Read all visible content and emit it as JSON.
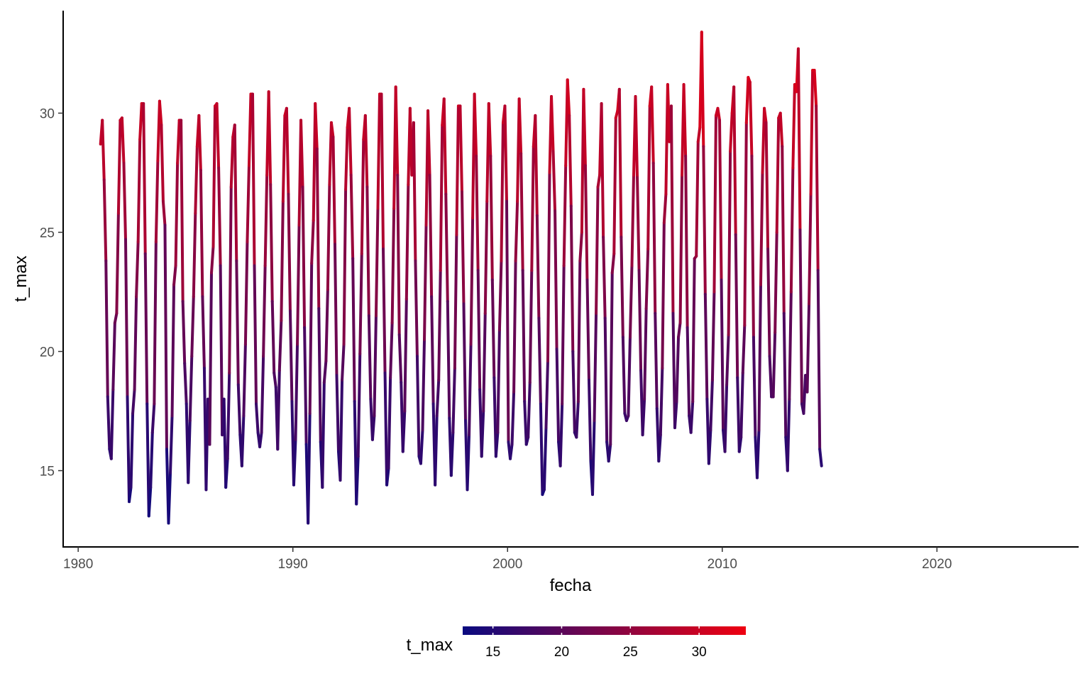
{
  "chart_data": {
    "type": "line",
    "title": "",
    "xlabel": "fecha",
    "ylabel": "t_max",
    "xlim": [
      1979.3,
      2026.6
    ],
    "ylim": [
      11.8,
      34.3
    ],
    "x_ticks": [
      1980,
      1990,
      2000,
      2010,
      2020
    ],
    "x_tick_labels": [
      "1980",
      "1990",
      "2000",
      "2010",
      "2020"
    ],
    "y_ticks": [
      15,
      20,
      25,
      30
    ],
    "y_tick_labels": [
      "15",
      "20",
      "25",
      "30"
    ],
    "grid": false,
    "series": [
      {
        "x_start": "1981-01",
        "frequency": "monthly",
        "color_mapped_to": "t_max",
        "values": [
          28.7,
          29.7,
          27.2,
          23.8,
          18.1,
          15.9,
          15.5,
          18.4,
          21.2,
          21.6,
          25.8,
          29.7,
          29.8,
          27.9,
          24.7,
          18.1,
          13.7,
          14.3,
          17.4,
          18.4,
          22.3,
          24.6,
          28.9,
          30.4,
          30.4,
          24.1,
          17.8,
          13.1,
          14.3,
          16.6,
          17.8,
          24.6,
          28.0,
          30.5,
          29.5,
          26.3,
          25.3,
          15.9,
          12.8,
          14.9,
          17.3,
          22.8,
          23.6,
          27.9,
          29.7,
          29.7,
          22.1,
          19.5,
          17.8,
          14.5,
          17.1,
          19.8,
          22.3,
          25.8,
          28.6,
          29.9,
          27.6,
          22.3,
          19.3,
          14.2,
          18.0,
          16.1,
          23.3,
          24.4,
          30.3,
          30.4,
          27.7,
          23.6,
          16.5,
          18.0,
          14.3,
          15.5,
          19.1,
          26.9,
          29.0,
          29.5,
          23.8,
          18.6,
          16.5,
          15.2,
          17.3,
          20.3,
          24.6,
          27.8,
          30.8,
          30.8,
          23.6,
          17.8,
          16.6,
          16.0,
          16.6,
          19.8,
          23.6,
          27.4,
          30.9,
          27.0,
          22.1,
          19.1,
          18.5,
          15.9,
          19.2,
          21.3,
          26.3,
          29.9,
          30.2,
          26.6,
          21.7,
          17.9,
          14.4,
          16.3,
          20.3,
          25.3,
          29.7,
          26.9,
          21.0,
          16.1,
          12.8,
          17.4,
          23.7,
          25.5,
          30.4,
          28.5,
          21.8,
          16.2,
          14.3,
          18.7,
          19.6,
          22.6,
          27.0,
          29.6,
          29.0,
          24.5,
          19.0,
          15.8,
          14.6,
          18.8,
          20.3,
          26.8,
          29.4,
          30.2,
          27.4,
          23.9,
          17.9,
          13.6,
          15.6,
          19.9,
          24.1,
          28.9,
          29.9,
          26.9,
          21.5,
          18.0,
          16.3,
          17.3,
          21.5,
          26.0,
          30.8,
          30.8,
          24.3,
          19.1,
          14.4,
          15.1,
          18.9,
          21.2,
          26.0,
          31.1,
          27.4,
          20.7,
          18.7,
          15.8,
          17.5,
          22.2,
          27.0,
          30.2,
          27.4,
          29.6,
          23.8,
          19.8,
          15.6,
          15.3,
          16.7,
          20.5,
          25.3,
          30.1,
          27.4,
          22.3,
          17.8,
          14.4,
          17.3,
          18.8,
          23.4,
          29.5,
          30.6,
          26.6,
          22.1,
          17.2,
          14.8,
          16.6,
          19.3,
          24.9,
          30.3,
          30.3,
          26.7,
          22.0,
          17.1,
          14.2,
          16.5,
          20.3,
          25.6,
          30.8,
          28.2,
          23.4,
          18.4,
          15.6,
          17.5,
          21.6,
          26.3,
          30.4,
          28.2,
          23.0,
          18.9,
          15.6,
          16.6,
          20.9,
          23.8,
          29.6,
          30.3,
          26.3,
          16.2,
          15.5,
          16.1,
          18.3,
          23.8,
          26.3,
          30.6,
          28.3,
          23.4,
          17.9,
          16.1,
          16.4,
          18.7,
          23.4,
          28.6,
          29.9,
          25.7,
          21.4,
          17.8,
          14.0,
          14.2,
          16.8,
          19.6,
          27.5,
          30.7,
          28.4,
          25.9,
          20.1,
          16.2,
          15.2,
          17.8,
          23.6,
          27.8,
          31.4,
          29.9,
          26.1,
          20.0,
          16.6,
          16.4,
          17.9,
          23.8,
          25.0,
          31.0,
          27.8,
          23.0,
          18.8,
          15.4,
          14.0,
          17.1,
          21.6,
          26.9,
          27.4,
          30.4,
          24.8,
          21.4,
          16.2,
          15.4,
          16.1,
          23.3,
          24.1,
          29.8,
          30.1,
          31.0,
          24.8,
          20.6,
          17.4,
          17.1,
          17.3,
          20.6,
          23.6,
          27.4,
          30.7,
          27.3,
          23.4,
          19.2,
          16.5,
          18.0,
          21.8,
          24.3,
          30.3,
          31.1,
          27.9,
          21.6,
          17.6,
          15.4,
          16.5,
          19.3,
          25.4,
          26.6,
          31.2,
          28.8,
          30.3,
          21.6,
          16.8,
          17.9,
          20.6,
          21.2,
          27.4,
          31.2,
          28.2,
          21.0,
          17.3,
          16.6,
          17.9,
          23.9,
          24.0,
          28.8,
          29.4,
          33.4,
          28.6,
          22.4,
          18.0,
          15.3,
          16.7,
          18.8,
          22.5,
          29.9,
          30.2,
          29.7,
          23.0,
          16.7,
          15.8,
          18.6,
          20.7,
          28.4,
          30.0,
          31.1,
          24.9,
          18.9,
          15.8,
          16.4,
          19.1,
          21.1,
          29.6,
          31.5,
          31.3,
          28.2,
          20.6,
          16.4,
          14.7,
          16.7,
          22.8,
          27.5,
          30.2,
          29.6,
          24.3,
          19.8,
          18.1,
          18.1,
          20.8,
          25.0,
          29.8,
          30.0,
          28.6,
          21.6,
          16.4,
          15.0,
          18.0,
          22.5,
          27.7,
          31.2,
          30.9,
          32.7,
          25.1,
          17.8,
          17.4,
          19.0,
          18.3,
          22.0,
          26.6,
          31.8,
          31.8,
          30.3,
          23.4,
          15.9,
          15.2
        ]
      }
    ],
    "color_scale": {
      "title": "t_max",
      "low_color": "#0a0a80",
      "high_color": "#ef0010",
      "range": [
        12.8,
        33.4
      ],
      "breaks": [
        15,
        20,
        25,
        30
      ],
      "break_labels": [
        "15",
        "20",
        "25",
        "30"
      ],
      "position": "bottom"
    }
  }
}
